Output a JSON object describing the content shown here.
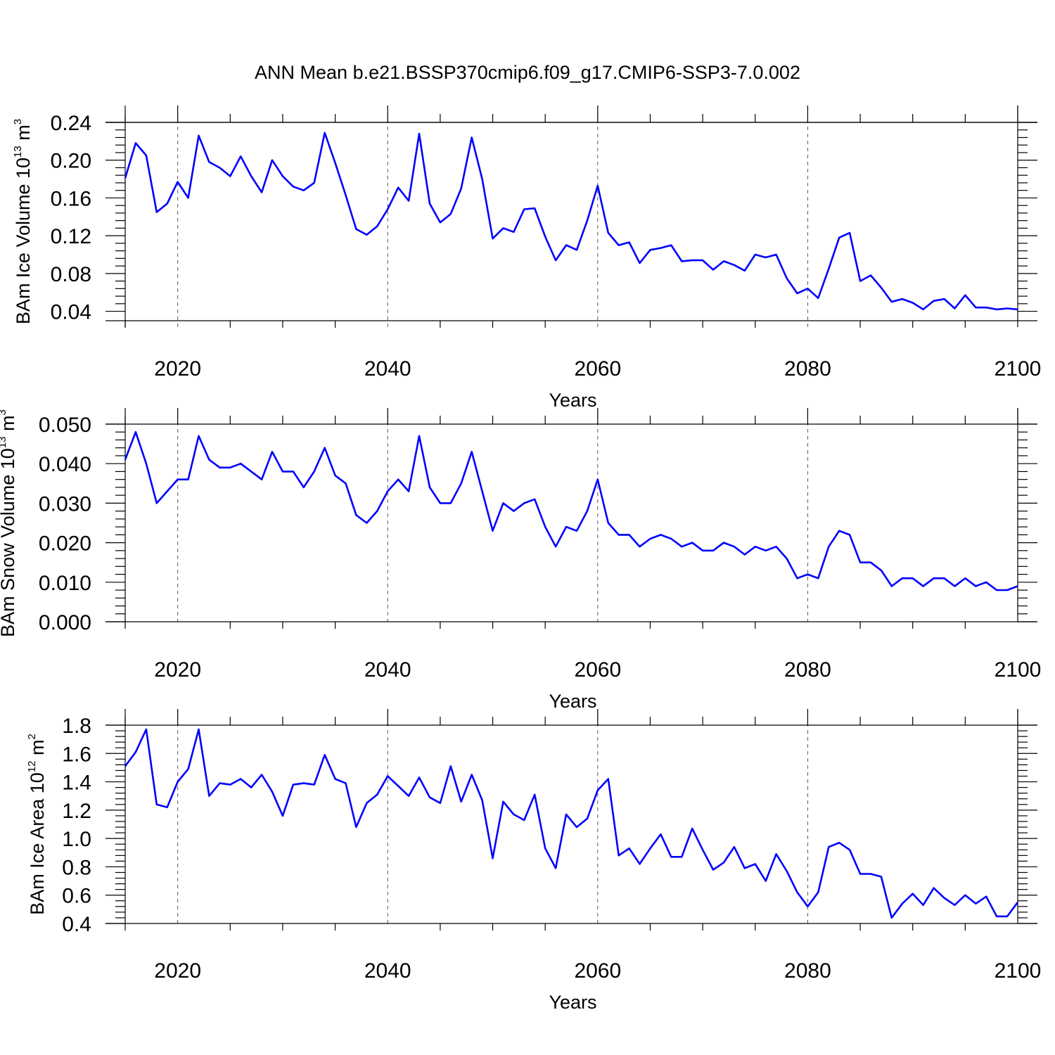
{
  "figure": {
    "title": "ANN Mean b.e21.BSSP370cmip6.f09_g17.CMIP6-SSP3-7.0.002"
  },
  "chart_data": [
    {
      "type": "line",
      "ylabel_main": "BAm Ice Volume 10",
      "ylabel_exp": "13",
      "ylabel_unit": " m",
      "ylabel_unit_exp": "3",
      "xlabel": "Years",
      "xlim": [
        2015,
        2100
      ],
      "ylim": [
        0.03,
        0.24
      ],
      "yticks": [
        0.04,
        0.08,
        0.12,
        0.16,
        0.2,
        0.24
      ],
      "ytick_labels": [
        "0.04",
        "0.08",
        "0.12",
        "0.16",
        "0.20",
        "0.24"
      ],
      "xticks": [
        2020,
        2040,
        2060,
        2080,
        2100
      ],
      "xtick_labels": [
        "2020",
        "2040",
        "2060",
        "2080",
        "2100"
      ],
      "grid": "vertical dashed at major x ticks",
      "color": "#0000ff",
      "series": [
        {
          "x": [
            2015,
            2016,
            2017,
            2018,
            2019,
            2020,
            2021,
            2022,
            2023,
            2024,
            2025,
            2026,
            2027,
            2028,
            2029,
            2030,
            2031,
            2032,
            2033,
            2034,
            2035,
            2036,
            2037,
            2038,
            2039,
            2040,
            2041,
            2042,
            2043,
            2044,
            2045,
            2046,
            2047,
            2048,
            2049,
            2050,
            2051,
            2052,
            2053,
            2054,
            2055,
            2056,
            2057,
            2058,
            2059,
            2060,
            2061,
            2062,
            2063,
            2064,
            2065,
            2066,
            2067,
            2068,
            2069,
            2070,
            2071,
            2072,
            2073,
            2074,
            2075,
            2076,
            2077,
            2078,
            2079,
            2080,
            2081,
            2082,
            2083,
            2084,
            2085,
            2086,
            2087,
            2088,
            2089,
            2090,
            2091,
            2092,
            2093,
            2094,
            2095,
            2096,
            2097,
            2098,
            2099,
            2100
          ],
          "y": [
            0.181,
            0.218,
            0.205,
            0.145,
            0.154,
            0.177,
            0.16,
            0.226,
            0.198,
            0.192,
            0.183,
            0.204,
            0.183,
            0.166,
            0.2,
            0.183,
            0.172,
            0.168,
            0.176,
            0.229,
            0.197,
            0.163,
            0.127,
            0.121,
            0.13,
            0.148,
            0.171,
            0.157,
            0.228,
            0.154,
            0.134,
            0.143,
            0.17,
            0.224,
            0.18,
            0.117,
            0.128,
            0.124,
            0.148,
            0.149,
            0.119,
            0.094,
            0.11,
            0.105,
            0.136,
            0.173,
            0.123,
            0.11,
            0.113,
            0.091,
            0.105,
            0.107,
            0.11,
            0.093,
            0.094,
            0.094,
            0.084,
            0.093,
            0.089,
            0.083,
            0.1,
            0.097,
            0.1,
            0.075,
            0.059,
            0.064,
            0.054,
            0.085,
            0.118,
            0.123,
            0.072,
            0.078,
            0.065,
            0.05,
            0.053,
            0.049,
            0.042,
            0.051,
            0.053,
            0.043,
            0.057,
            0.044,
            0.044,
            0.042,
            0.043,
            0.042
          ]
        }
      ]
    },
    {
      "type": "line",
      "ylabel_main": "BAm Snow Volume 10",
      "ylabel_exp": "13",
      "ylabel_unit": " m",
      "ylabel_unit_exp": "3",
      "xlabel": "Years",
      "xlim": [
        2015,
        2100
      ],
      "ylim": [
        0.0,
        0.05
      ],
      "yticks": [
        0.0,
        0.01,
        0.02,
        0.03,
        0.04,
        0.05
      ],
      "ytick_labels": [
        "0.000",
        "0.010",
        "0.020",
        "0.030",
        "0.040",
        "0.050"
      ],
      "xticks": [
        2020,
        2040,
        2060,
        2080,
        2100
      ],
      "xtick_labels": [
        "2020",
        "2040",
        "2060",
        "2080",
        "2100"
      ],
      "grid": "vertical dashed at major x ticks",
      "color": "#0000ff",
      "series": [
        {
          "x": [
            2015,
            2016,
            2017,
            2018,
            2019,
            2020,
            2021,
            2022,
            2023,
            2024,
            2025,
            2026,
            2027,
            2028,
            2029,
            2030,
            2031,
            2032,
            2033,
            2034,
            2035,
            2036,
            2037,
            2038,
            2039,
            2040,
            2041,
            2042,
            2043,
            2044,
            2045,
            2046,
            2047,
            2048,
            2049,
            2050,
            2051,
            2052,
            2053,
            2054,
            2055,
            2056,
            2057,
            2058,
            2059,
            2060,
            2061,
            2062,
            2063,
            2064,
            2065,
            2066,
            2067,
            2068,
            2069,
            2070,
            2071,
            2072,
            2073,
            2074,
            2075,
            2076,
            2077,
            2078,
            2079,
            2080,
            2081,
            2082,
            2083,
            2084,
            2085,
            2086,
            2087,
            2088,
            2089,
            2090,
            2091,
            2092,
            2093,
            2094,
            2095,
            2096,
            2097,
            2098,
            2099,
            2100
          ],
          "y": [
            0.041,
            0.048,
            0.04,
            0.03,
            0.033,
            0.036,
            0.036,
            0.047,
            0.041,
            0.039,
            0.039,
            0.04,
            0.038,
            0.036,
            0.043,
            0.038,
            0.038,
            0.034,
            0.038,
            0.044,
            0.037,
            0.035,
            0.027,
            0.025,
            0.028,
            0.033,
            0.036,
            0.033,
            0.047,
            0.034,
            0.03,
            0.03,
            0.035,
            0.043,
            0.033,
            0.023,
            0.03,
            0.028,
            0.03,
            0.031,
            0.024,
            0.019,
            0.024,
            0.023,
            0.028,
            0.036,
            0.025,
            0.022,
            0.022,
            0.019,
            0.021,
            0.022,
            0.021,
            0.019,
            0.02,
            0.018,
            0.018,
            0.02,
            0.019,
            0.017,
            0.019,
            0.018,
            0.019,
            0.016,
            0.011,
            0.012,
            0.011,
            0.019,
            0.023,
            0.022,
            0.015,
            0.015,
            0.013,
            0.009,
            0.011,
            0.011,
            0.009,
            0.011,
            0.011,
            0.009,
            0.011,
            0.009,
            0.01,
            0.008,
            0.008,
            0.009
          ]
        }
      ]
    },
    {
      "type": "line",
      "ylabel_main": "BAm Ice Area 10",
      "ylabel_exp": "12",
      "ylabel_unit": " m",
      "ylabel_unit_exp": "2",
      "xlabel": "Years",
      "xlim": [
        2015,
        2100
      ],
      "ylim": [
        0.4,
        1.8
      ],
      "yticks": [
        0.4,
        0.6,
        0.8,
        1.0,
        1.2,
        1.4,
        1.6,
        1.8
      ],
      "ytick_labels": [
        "0.4",
        "0.6",
        "0.8",
        "1.0",
        "1.2",
        "1.4",
        "1.6",
        "1.8"
      ],
      "xticks": [
        2020,
        2040,
        2060,
        2080,
        2100
      ],
      "xtick_labels": [
        "2020",
        "2040",
        "2060",
        "2080",
        "2100"
      ],
      "grid": "vertical dashed at major x ticks",
      "color": "#0000ff",
      "series": [
        {
          "x": [
            2015,
            2016,
            2017,
            2018,
            2019,
            2020,
            2021,
            2022,
            2023,
            2024,
            2025,
            2026,
            2027,
            2028,
            2029,
            2030,
            2031,
            2032,
            2033,
            2034,
            2035,
            2036,
            2037,
            2038,
            2039,
            2040,
            2041,
            2042,
            2043,
            2044,
            2045,
            2046,
            2047,
            2048,
            2049,
            2050,
            2051,
            2052,
            2053,
            2054,
            2055,
            2056,
            2057,
            2058,
            2059,
            2060,
            2061,
            2062,
            2063,
            2064,
            2065,
            2066,
            2067,
            2068,
            2069,
            2070,
            2071,
            2072,
            2073,
            2074,
            2075,
            2076,
            2077,
            2078,
            2079,
            2080,
            2081,
            2082,
            2083,
            2084,
            2085,
            2086,
            2087,
            2088,
            2089,
            2090,
            2091,
            2092,
            2093,
            2094,
            2095,
            2096,
            2097,
            2098,
            2099,
            2100
          ],
          "y": [
            1.51,
            1.61,
            1.77,
            1.24,
            1.22,
            1.4,
            1.49,
            1.77,
            1.3,
            1.39,
            1.38,
            1.42,
            1.36,
            1.45,
            1.33,
            1.16,
            1.38,
            1.39,
            1.38,
            1.59,
            1.42,
            1.39,
            1.08,
            1.25,
            1.31,
            1.44,
            1.37,
            1.3,
            1.43,
            1.29,
            1.25,
            1.51,
            1.26,
            1.45,
            1.27,
            0.86,
            1.26,
            1.17,
            1.13,
            1.31,
            0.93,
            0.79,
            1.17,
            1.08,
            1.14,
            1.34,
            1.42,
            0.88,
            0.93,
            0.82,
            0.93,
            1.03,
            0.87,
            0.87,
            1.07,
            0.92,
            0.78,
            0.83,
            0.94,
            0.79,
            0.82,
            0.7,
            0.89,
            0.77,
            0.62,
            0.52,
            0.62,
            0.94,
            0.97,
            0.92,
            0.75,
            0.75,
            0.73,
            0.44,
            0.54,
            0.61,
            0.53,
            0.65,
            0.58,
            0.53,
            0.6,
            0.54,
            0.59,
            0.45,
            0.45,
            0.55
          ]
        }
      ]
    }
  ]
}
